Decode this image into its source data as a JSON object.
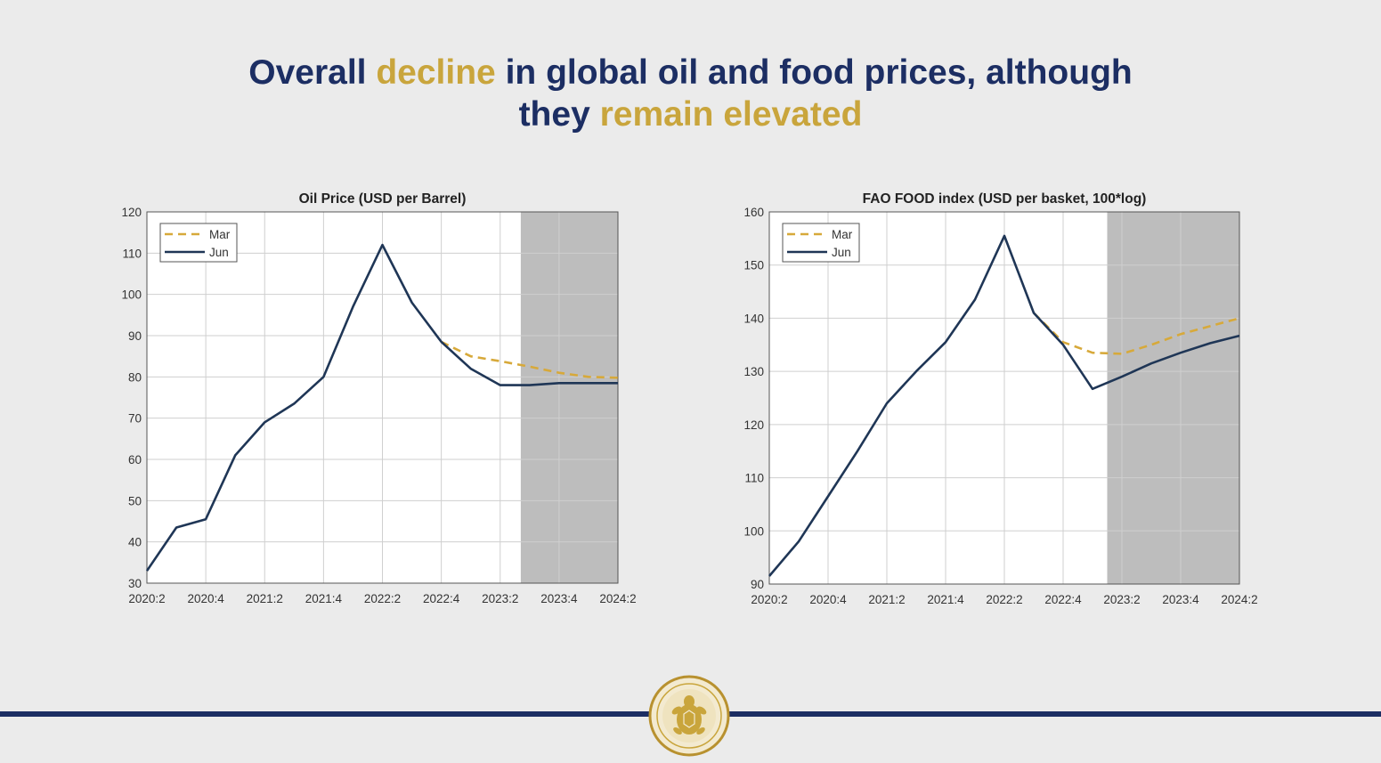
{
  "slide": {
    "title_parts": [
      {
        "text": "Overall ",
        "highlight": false
      },
      {
        "text": "decline",
        "highlight": true
      },
      {
        "text": " in global oil and food prices, although",
        "highlight": false
      },
      {
        "text": "they ",
        "highlight": false,
        "newline": true
      },
      {
        "text": "remain elevated",
        "highlight": true
      }
    ]
  },
  "colors": {
    "title": "#1c2e63",
    "highlight": "#c9a53c",
    "mar_series": "#d7a93a",
    "jun_series": "#1f3656",
    "forecast_shade": "#bdbdbd"
  },
  "chart_data": [
    {
      "type": "line",
      "title": "Oil Price (USD per Barrel)",
      "x": [
        "2020:2",
        "2020:3",
        "2020:4",
        "2021:1",
        "2021:2",
        "2021:3",
        "2021:4",
        "2022:1",
        "2022:2",
        "2022:3",
        "2022:4",
        "2023:1",
        "2023:2",
        "2023:3",
        "2023:4",
        "2024:1",
        "2024:2"
      ],
      "xticks": [
        "2020:2",
        "2020:4",
        "2021:2",
        "2021:4",
        "2022:2",
        "2022:4",
        "2023:2",
        "2023:4",
        "2024:2"
      ],
      "ylim": [
        30,
        120
      ],
      "yticks": [
        30,
        40,
        50,
        60,
        70,
        80,
        90,
        100,
        110,
        120
      ],
      "forecast_shade_from": 12.7,
      "grid": true,
      "legend_position": "top-left",
      "series": [
        {
          "name": "Mar",
          "style": "dashed",
          "values": [
            null,
            null,
            null,
            null,
            null,
            null,
            null,
            null,
            null,
            null,
            88.5,
            85,
            83.8,
            82.5,
            81,
            80,
            79.8
          ]
        },
        {
          "name": "Jun",
          "style": "solid",
          "values": [
            33,
            43.5,
            45.5,
            61,
            69,
            73.5,
            80,
            97,
            112,
            98,
            88.5,
            82,
            78,
            78,
            78.5,
            78.5,
            78.5
          ]
        }
      ]
    },
    {
      "type": "line",
      "title": "FAO FOOD index (USD per basket, 100*log)",
      "x": [
        "2020:2",
        "2020:3",
        "2020:4",
        "2021:1",
        "2021:2",
        "2021:3",
        "2021:4",
        "2022:1",
        "2022:2",
        "2022:3",
        "2022:4",
        "2023:1",
        "2023:2",
        "2023:3",
        "2023:4",
        "2024:1",
        "2024:2"
      ],
      "xticks": [
        "2020:2",
        "2020:4",
        "2021:2",
        "2021:4",
        "2022:2",
        "2022:4",
        "2023:2",
        "2023:4",
        "2024:2"
      ],
      "ylim": [
        90,
        160
      ],
      "yticks": [
        90,
        100,
        110,
        120,
        130,
        140,
        150,
        160
      ],
      "forecast_shade_from": 11.5,
      "grid": true,
      "legend_position": "top-left",
      "series": [
        {
          "name": "Mar",
          "style": "dashed",
          "values": [
            null,
            null,
            null,
            null,
            null,
            null,
            null,
            null,
            null,
            141,
            135.5,
            133.5,
            133.3,
            135,
            137,
            138.5,
            140
          ]
        },
        {
          "name": "Jun",
          "style": "solid",
          "values": [
            91.5,
            98,
            106.5,
            115,
            124,
            130,
            135.5,
            143.5,
            155.5,
            141,
            135,
            126.7,
            129,
            131.5,
            133.5,
            135.3,
            136.7
          ]
        }
      ]
    }
  ]
}
